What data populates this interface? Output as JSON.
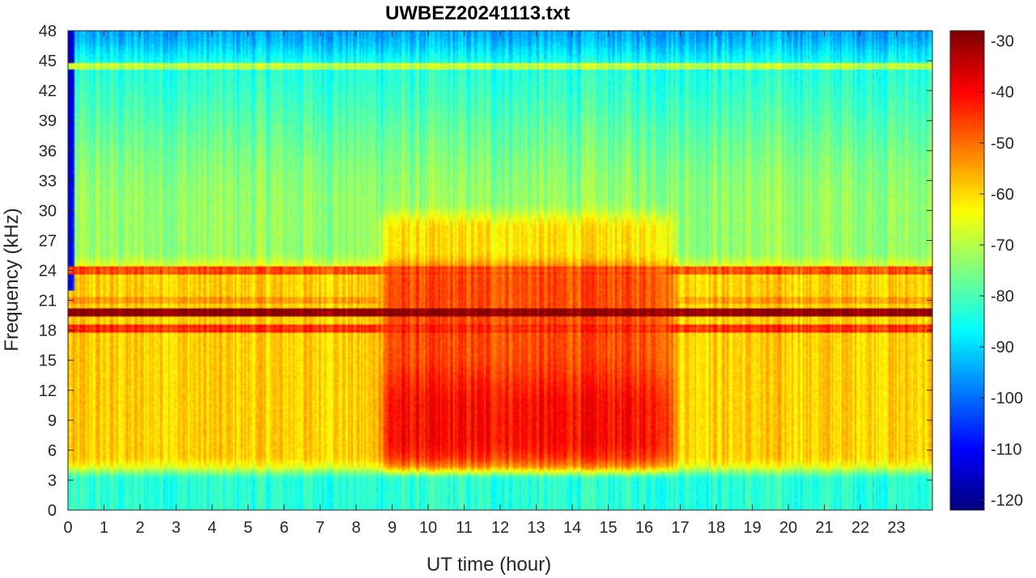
{
  "chart_data": {
    "type": "heatmap",
    "title": "UWBEZ20241113.txt",
    "xlabel": "UT time (hour)",
    "ylabel": "Frequency (kHz)",
    "xlim": [
      0,
      24
    ],
    "ylim": [
      0,
      48
    ],
    "x_ticks": [
      "0",
      "1",
      "2",
      "3",
      "4",
      "5",
      "6",
      "7",
      "8",
      "9",
      "10",
      "11",
      "12",
      "13",
      "14",
      "15",
      "16",
      "17",
      "18",
      "19",
      "20",
      "21",
      "22",
      "23"
    ],
    "y_ticks": [
      "0",
      "3",
      "6",
      "9",
      "12",
      "15",
      "18",
      "21",
      "24",
      "27",
      "30",
      "33",
      "36",
      "39",
      "42",
      "45",
      "48"
    ],
    "colorbar": {
      "range": [
        -122,
        -28
      ],
      "ticks": [
        "-30",
        "-40",
        "-50",
        "-60",
        "-70",
        "-80",
        "-90",
        "-100",
        "-110",
        "-120"
      ],
      "colormap": "jet"
    },
    "grid": false,
    "features": {
      "background_high_freq_level": -85,
      "top_edge_level": -95,
      "enhanced_band_khz": [
        4,
        24
      ],
      "enhanced_band_level": -60,
      "daytime_enhancement_hours": [
        8.7,
        16.8
      ],
      "daytime_enhancement_max_freq_khz": 31,
      "daytime_peak_level": -50,
      "strong_transmitter_lines_khz": [
        {
          "freq": 19.8,
          "level": -30
        },
        {
          "freq": 18.2,
          "level": -45
        },
        {
          "freq": 24.0,
          "level": -48
        },
        {
          "freq": 21.0,
          "level": -55
        },
        {
          "freq": 44.4,
          "level": -70
        }
      ]
    }
  }
}
